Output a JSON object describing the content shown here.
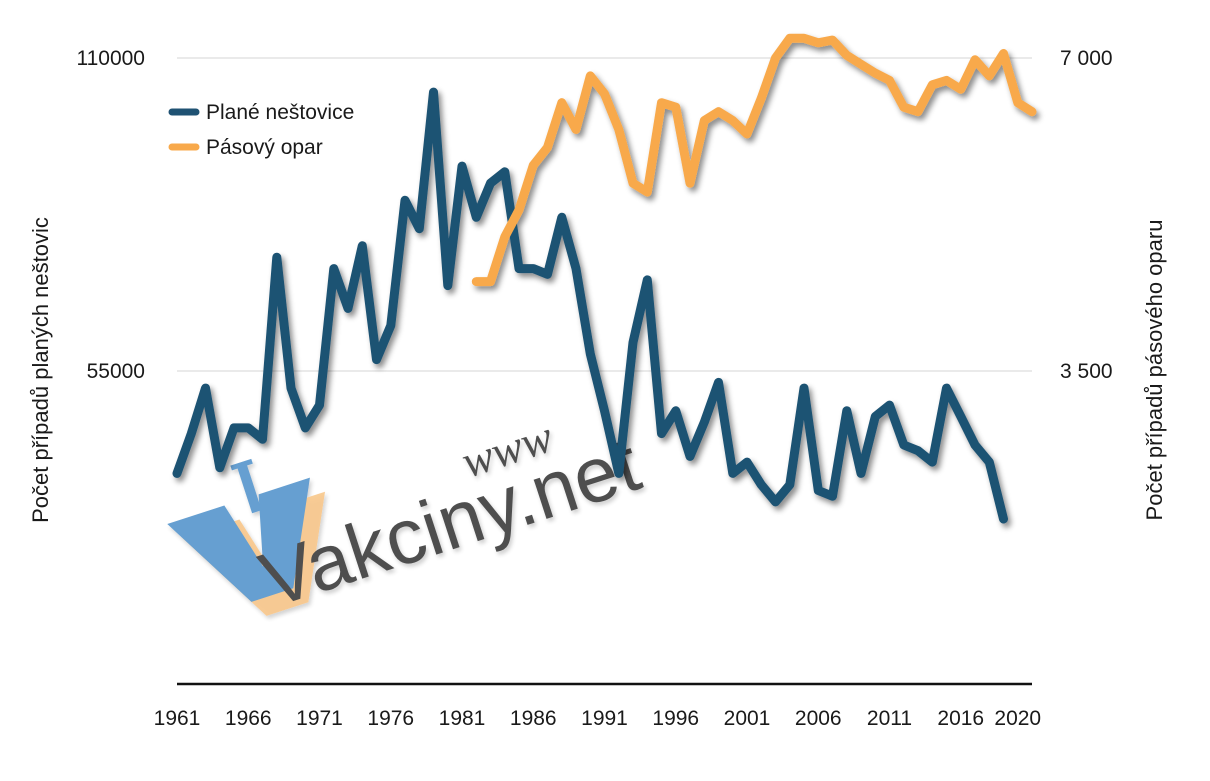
{
  "colors": {
    "smallpox": "#1f5273",
    "measles": "#f8a94b",
    "watermark_blue": "#3a84c4",
    "watermark_orange": "#f6b76a",
    "grid": "#d6d6d6"
  },
  "watermark": {
    "www": "www",
    "text": "Vakciny.net"
  },
  "chart_data": {
    "type": "line",
    "title": "",
    "xlabel": "",
    "ylabel_left": "Počet případů planých neštovic",
    "ylabel_right": "Počet případů pásového oparu",
    "xlim": [
      1961,
      2021
    ],
    "ylim_left": [
      0,
      110000
    ],
    "ylim_right": [
      0,
      7000
    ],
    "x_ticks": [
      "1961",
      "1966",
      "1971",
      "1976",
      "1981",
      "1986",
      "1991",
      "1996",
      "2001",
      "2006",
      "2011",
      "2016",
      "2020"
    ],
    "y_ticks_left": [
      "110000",
      "55000"
    ],
    "y_ticks_right": [
      "7 000",
      "3 500"
    ],
    "legend_position": "top-left",
    "series": [
      {
        "name": "Plané neštovice",
        "axis": "left",
        "x": [
          1961,
          1962,
          1963,
          1964,
          1965,
          1966,
          1967,
          1968,
          1969,
          1970,
          1971,
          1972,
          1973,
          1974,
          1975,
          1976,
          1977,
          1978,
          1979,
          1980,
          1981,
          1982,
          1983,
          1984,
          1985,
          1986,
          1987,
          1988,
          1989,
          1990,
          1991,
          1992,
          1993,
          1994,
          1995,
          1996,
          1997,
          1998,
          1999,
          2000,
          2001,
          2002,
          2003,
          2004,
          2005,
          2006,
          2007,
          2008,
          2009,
          2010,
          2011,
          2012,
          2013,
          2014,
          2015,
          2016,
          2017,
          2018,
          2019
        ],
        "values": [
          37000,
          44000,
          52000,
          38000,
          45000,
          45000,
          43000,
          75000,
          52000,
          45000,
          49000,
          73000,
          66000,
          77000,
          57000,
          63000,
          85000,
          80000,
          104000,
          70000,
          91000,
          82000,
          88000,
          90000,
          73000,
          73000,
          72000,
          82000,
          73000,
          58000,
          48000,
          37000,
          60000,
          71000,
          44000,
          48000,
          40000,
          46000,
          53000,
          37000,
          39000,
          35000,
          32000,
          35000,
          52000,
          34000,
          33000,
          48000,
          37000,
          47000,
          49000,
          42000,
          41000,
          39000,
          52000,
          47000,
          42000,
          39000,
          29000
        ]
      },
      {
        "name": "Pásový opar",
        "axis": "right",
        "x": [
          1982,
          1983,
          1984,
          1985,
          1986,
          1987,
          1988,
          1989,
          1990,
          1991,
          1992,
          1993,
          1994,
          1995,
          1996,
          1997,
          1998,
          1999,
          2000,
          2001,
          2002,
          2003,
          2004,
          2005,
          2006,
          2007,
          2008,
          2009,
          2010,
          2011,
          2012,
          2013,
          2014,
          2015,
          2016,
          2017,
          2018,
          2019,
          2020,
          2021
        ],
        "values": [
          4500,
          4500,
          5000,
          5300,
          5800,
          6000,
          6500,
          6200,
          6800,
          6600,
          6200,
          5600,
          5500,
          6500,
          6450,
          5600,
          6300,
          6400,
          6300,
          6150,
          6550,
          7000,
          7220,
          7220,
          7170,
          7200,
          7030,
          6930,
          6830,
          6750,
          6450,
          6400,
          6700,
          6750,
          6650,
          6980,
          6800,
          7050,
          6500,
          6400
        ]
      }
    ]
  }
}
